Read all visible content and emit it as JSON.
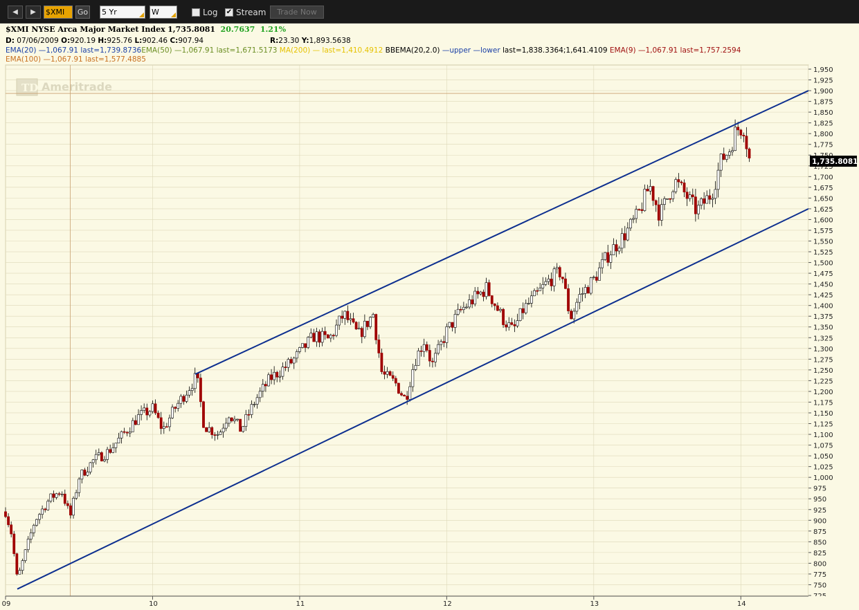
{
  "toolbar": {
    "symbol": "$XMI",
    "go_label": "Go",
    "timeframe": "5 Yr",
    "interval": "W",
    "log_label": "Log",
    "log_checked": false,
    "stream_label": "Stream",
    "stream_checked": true,
    "trade_label": "Trade Now"
  },
  "header": {
    "title": "$XMI NYSE Arca Major Market Index",
    "last": "1,735.8081",
    "change": "20.7637",
    "change_pct": "1.21%",
    "ohlc": {
      "d_label": "D:",
      "date": "07/06/2009",
      "o_label": "O:",
      "open": "920.19",
      "h_label": "H:",
      "high": "925.76",
      "l_label": "L:",
      "low": "902.46",
      "c_label": "C:",
      "close": "907.94"
    },
    "cursor": {
      "r_label": "R:",
      "r": "23.30",
      "y_label": "Y:",
      "y": "1,893.5638"
    },
    "studies": [
      {
        "text": "EMA(20) —1,067.91 last=1,739.8736",
        "color": "#1a3fa6"
      },
      {
        "text": "EMA(50) —1,067.91 last=1,671.5173",
        "color": "#6b8e23"
      },
      {
        "text": "MA(200) — last=1,410.4912",
        "color": "#e6c200"
      },
      {
        "text": "BBEMA(20,2.0)",
        "color": "#000000"
      },
      {
        "text": "—upper —lower",
        "color": "#1a3fa6"
      },
      {
        "text": "last=1,838.3364;1,641.4109",
        "color": "#000000"
      },
      {
        "text": "EMA(9) —1,067.91 last=1,757.2594",
        "color": "#a01010"
      },
      {
        "text": "EMA(100) —1,067.91 last=1,577.4885",
        "color": "#c87020"
      }
    ]
  },
  "watermark": "Ameritrade",
  "watermark_logo": "TD",
  "colors": {
    "up": "#ffffff",
    "down": "#a00000",
    "wick": "#000000",
    "channel": "#0d2f8f",
    "grid": "#ddd8b8",
    "bg": "#fbf9e4"
  },
  "chart_data": {
    "type": "candlestick",
    "title": "$XMI NYSE Arca Major Market Index",
    "interval": "weekly",
    "ylim": [
      725,
      1950
    ],
    "y_ticks": [
      725,
      750,
      775,
      800,
      825,
      850,
      875,
      900,
      925,
      950,
      975,
      1000,
      1025,
      1050,
      1075,
      1100,
      1125,
      1150,
      1175,
      1200,
      1225,
      1250,
      1275,
      1300,
      1325,
      1350,
      1375,
      1400,
      1425,
      1450,
      1475,
      1500,
      1525,
      1550,
      1575,
      1600,
      1625,
      1650,
      1675,
      1700,
      1725,
      1750,
      1775,
      1800,
      1825,
      1850,
      1875,
      1900,
      1925,
      1950
    ],
    "y_tick_labels": [
      "725",
      "750",
      "775",
      "800",
      "825",
      "850",
      "875",
      "900",
      "925",
      "950",
      "975",
      "1,000",
      "1,025",
      "1,050",
      "1,075",
      "1,100",
      "1,125",
      "1,150",
      "1,175",
      "1,200",
      "1,225",
      "1,250",
      "1,275",
      "1,300",
      "1,325",
      "1,350",
      "1,375",
      "1,400",
      "1,425",
      "1,450",
      "1,475",
      "1,500",
      "1,525",
      "1,550",
      "1,575",
      "1,600",
      "1,625",
      "1,650",
      "1,675",
      "1,700",
      "1,725",
      "1,750",
      "1,775",
      "1,800",
      "1,825",
      "1,850",
      "1,875",
      "1,900",
      "1,925",
      "1,950"
    ],
    "x_range": [
      2009.0,
      2014.46
    ],
    "x_ticks": [
      {
        "t": 2009.0,
        "label": "09"
      },
      {
        "t": 2010.0,
        "label": "10"
      },
      {
        "t": 2011.0,
        "label": "11"
      },
      {
        "t": 2012.0,
        "label": "12"
      },
      {
        "t": 2013.0,
        "label": "13"
      },
      {
        "t": 2014.0,
        "label": "14"
      }
    ],
    "last_label": "1,735.8081",
    "last_value": 1735.8081,
    "crosshair": {
      "t": 2009.44,
      "y": 1893.56
    },
    "trendlines": [
      {
        "name": "upper",
        "t1": 2010.29,
        "y1": 1240,
        "t2": 2014.46,
        "y2": 1900
      },
      {
        "name": "lower",
        "t1": 2009.08,
        "y1": 740,
        "t2": 2014.46,
        "y2": 1625
      }
    ],
    "anchors": [
      {
        "t": 2009.0,
        "v": 920
      },
      {
        "t": 2009.04,
        "v": 870
      },
      {
        "t": 2009.08,
        "v": 760
      },
      {
        "t": 2009.13,
        "v": 820
      },
      {
        "t": 2009.2,
        "v": 900
      },
      {
        "t": 2009.3,
        "v": 950
      },
      {
        "t": 2009.38,
        "v": 970
      },
      {
        "t": 2009.44,
        "v": 908
      },
      {
        "t": 2009.5,
        "v": 1000
      },
      {
        "t": 2009.6,
        "v": 1040
      },
      {
        "t": 2009.7,
        "v": 1060
      },
      {
        "t": 2009.8,
        "v": 1100
      },
      {
        "t": 2009.9,
        "v": 1140
      },
      {
        "t": 2010.0,
        "v": 1160
      },
      {
        "t": 2010.07,
        "v": 1110
      },
      {
        "t": 2010.15,
        "v": 1160
      },
      {
        "t": 2010.25,
        "v": 1210
      },
      {
        "t": 2010.3,
        "v": 1235
      },
      {
        "t": 2010.35,
        "v": 1120
      },
      {
        "t": 2010.45,
        "v": 1100
      },
      {
        "t": 2010.52,
        "v": 1150
      },
      {
        "t": 2010.6,
        "v": 1110
      },
      {
        "t": 2010.7,
        "v": 1180
      },
      {
        "t": 2010.8,
        "v": 1230
      },
      {
        "t": 2010.95,
        "v": 1270
      },
      {
        "t": 2011.1,
        "v": 1330
      },
      {
        "t": 2011.2,
        "v": 1320
      },
      {
        "t": 2011.3,
        "v": 1380
      },
      {
        "t": 2011.4,
        "v": 1330
      },
      {
        "t": 2011.5,
        "v": 1380
      },
      {
        "t": 2011.56,
        "v": 1240
      },
      {
        "t": 2011.65,
        "v": 1220
      },
      {
        "t": 2011.72,
        "v": 1180
      },
      {
        "t": 2011.78,
        "v": 1270
      },
      {
        "t": 2011.85,
        "v": 1320
      },
      {
        "t": 2011.9,
        "v": 1260
      },
      {
        "t": 2012.0,
        "v": 1340
      },
      {
        "t": 2012.1,
        "v": 1390
      },
      {
        "t": 2012.2,
        "v": 1420
      },
      {
        "t": 2012.27,
        "v": 1440
      },
      {
        "t": 2012.38,
        "v": 1370
      },
      {
        "t": 2012.45,
        "v": 1340
      },
      {
        "t": 2012.52,
        "v": 1390
      },
      {
        "t": 2012.6,
        "v": 1420
      },
      {
        "t": 2012.7,
        "v": 1460
      },
      {
        "t": 2012.78,
        "v": 1480
      },
      {
        "t": 2012.84,
        "v": 1370
      },
      {
        "t": 2012.9,
        "v": 1420
      },
      {
        "t": 2013.0,
        "v": 1460
      },
      {
        "t": 2013.1,
        "v": 1520
      },
      {
        "t": 2013.2,
        "v": 1560
      },
      {
        "t": 2013.3,
        "v": 1610
      },
      {
        "t": 2013.38,
        "v": 1680
      },
      {
        "t": 2013.45,
        "v": 1610
      },
      {
        "t": 2013.55,
        "v": 1690
      },
      {
        "t": 2013.62,
        "v": 1660
      },
      {
        "t": 2013.7,
        "v": 1620
      },
      {
        "t": 2013.8,
        "v": 1660
      },
      {
        "t": 2013.87,
        "v": 1740
      },
      {
        "t": 2013.92,
        "v": 1760
      },
      {
        "t": 2013.97,
        "v": 1810
      },
      {
        "t": 2014.02,
        "v": 1815
      },
      {
        "t": 2014.06,
        "v": 1735.8
      }
    ]
  }
}
